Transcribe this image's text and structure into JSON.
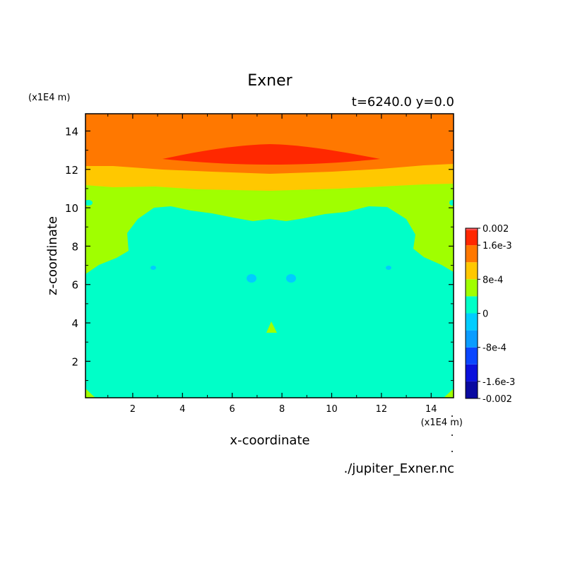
{
  "chart_data": {
    "type": "heatmap",
    "title": "Exner",
    "subtitle": "t=6240.0 y=0.0",
    "xlabel": "x-coordinate",
    "ylabel": "z-coordinate",
    "x_unit": "(x1E4 m)",
    "y_unit": "(x1E4 m)",
    "source": "./jupiter_Exner.nc",
    "xlim": [
      0.1,
      14.9
    ],
    "ylim": [
      0.1,
      14.9
    ],
    "x_ticks": [
      2,
      4,
      6,
      8,
      10,
      12,
      14
    ],
    "y_ticks": [
      2,
      4,
      6,
      8,
      10,
      12,
      14
    ],
    "colorbar": {
      "levels": [
        -0.002,
        -0.0016,
        -0.0012,
        -0.0008,
        -0.0004,
        0,
        0.0004,
        0.0008,
        0.0012,
        0.0016,
        0.002
      ],
      "colors": [
        "#0a0aa0",
        "#0a10dc",
        "#0a46ff",
        "#0a9cff",
        "#00cdff",
        "#00ffc8",
        "#a0ff00",
        "#ffc800",
        "#ff7800",
        "#ff2800"
      ],
      "top_color": "#ff5050",
      "labels": [
        {
          "text": "0.002",
          "value": 0.002
        },
        {
          "text": "1.6e-3",
          "value": 0.0016
        },
        {
          "text": "8e-4",
          "value": 0.0008
        },
        {
          "text": "0",
          "value": 0
        },
        {
          "text": "-8e-4",
          "value": -0.0008
        },
        {
          "text": "-1.6e-3",
          "value": -0.0016
        },
        {
          "text": "-0.002",
          "value": -0.002
        }
      ]
    },
    "regions": [
      {
        "name": "top-band",
        "value": 0.0014,
        "color": "#ff7800"
      },
      {
        "name": "upper-max",
        "value": 0.0018,
        "color": "#ff2800"
      },
      {
        "name": "band-1",
        "value": 0.001,
        "color": "#ffc800"
      },
      {
        "name": "band-2",
        "value": 0.0002,
        "color": "#a0ff00"
      },
      {
        "name": "lower-domain",
        "value": -0.0002,
        "color": "#00ffc8"
      },
      {
        "name": "blobs",
        "value": -0.0006,
        "color": "#00cdff"
      },
      {
        "name": "central-peak",
        "value": 0.0001,
        "color": "#a0ff00"
      }
    ]
  }
}
